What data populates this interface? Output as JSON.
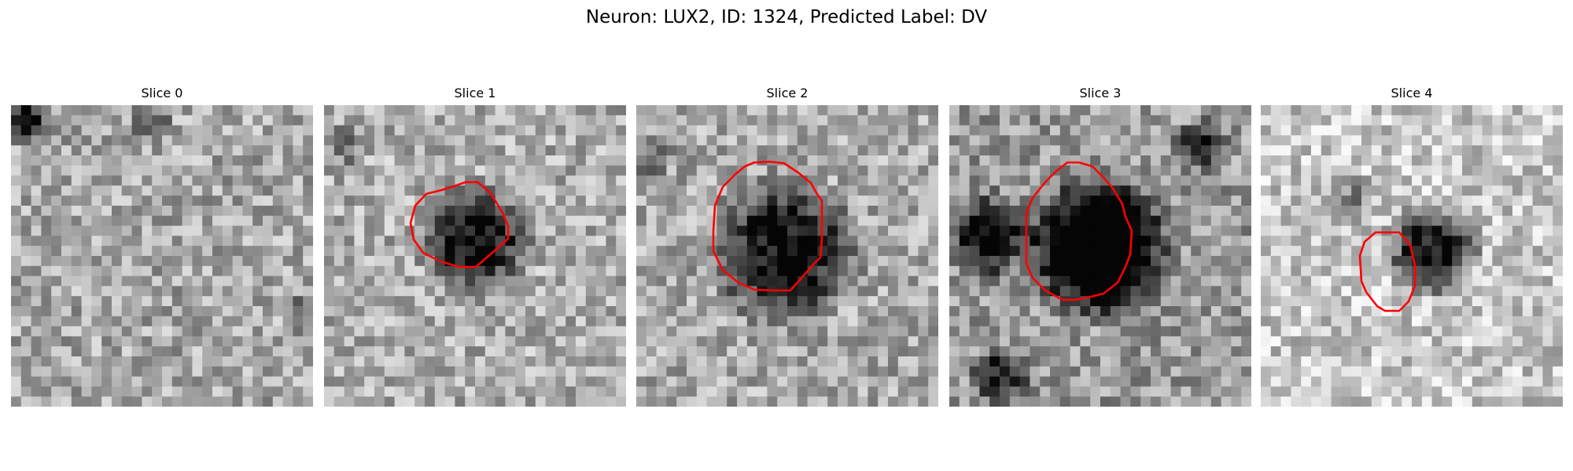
{
  "suptitle": "Neuron: LUX2, ID: 1324, Predicted Label: DV",
  "slices": [
    {
      "title": "Slice 0",
      "has_contour": false
    },
    {
      "title": "Slice 1",
      "has_contour": true
    },
    {
      "title": "Slice 2",
      "has_contour": true
    },
    {
      "title": "Slice 3",
      "has_contour": true
    },
    {
      "title": "Slice 4",
      "has_contour": true
    }
  ],
  "colors": {
    "contour": "#ff0000",
    "background": "#ffffff"
  },
  "colormap": "grayscale"
}
